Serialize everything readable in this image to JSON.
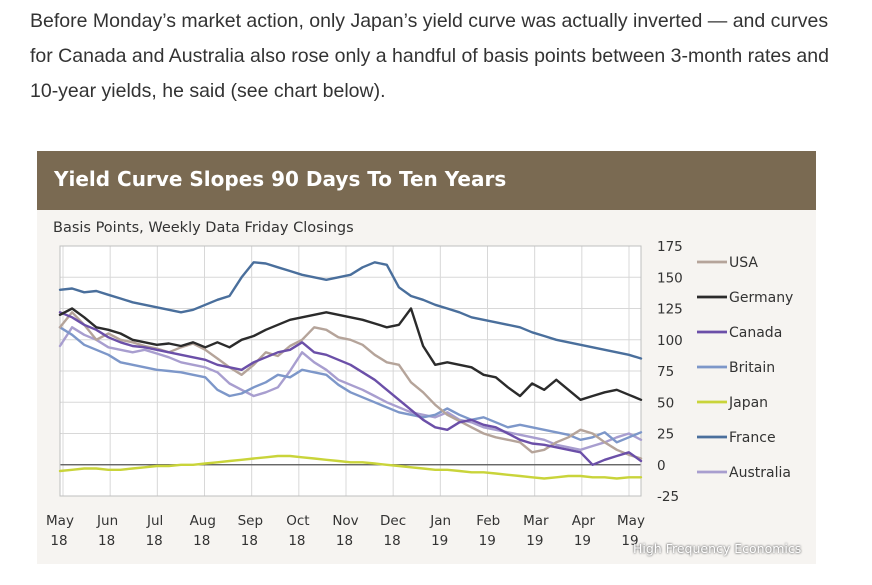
{
  "article": {
    "paragraph": "Before Monday’s market action, only Japan’s yield curve was actually inverted — and curves for Canada and Australia also rose only a handful of basis points between 3-month rates and 10-year yields, he said (see chart below)."
  },
  "chart_data": {
    "type": "line",
    "title": "Yield Curve Slopes 90 Days To Ten Years",
    "subtitle": "Basis Points, Weekly Data Friday Closings",
    "source": "High Frequency Economics",
    "ylim": [
      -25,
      175
    ],
    "yticks": [
      175,
      150,
      125,
      100,
      75,
      50,
      25,
      0,
      -25
    ],
    "x_tick_labels": [
      {
        "month": "May",
        "year": "18"
      },
      {
        "month": "Jun",
        "year": "18"
      },
      {
        "month": "Jul",
        "year": "18"
      },
      {
        "month": "Aug",
        "year": "18"
      },
      {
        "month": "Sep",
        "year": "18"
      },
      {
        "month": "Oct",
        "year": "18"
      },
      {
        "month": "Nov",
        "year": "18"
      },
      {
        "month": "Dec",
        "year": "18"
      },
      {
        "month": "Jan",
        "year": "19"
      },
      {
        "month": "Feb",
        "year": "19"
      },
      {
        "month": "Mar",
        "year": "19"
      },
      {
        "month": "Apr",
        "year": "19"
      },
      {
        "month": "May",
        "year": "19"
      }
    ],
    "grid": true,
    "legend_position": "right",
    "series": [
      {
        "name": "USA",
        "color": "#b5a49a",
        "values": [
          110,
          122,
          112,
          100,
          105,
          100,
          98,
          95,
          93,
          90,
          94,
          97,
          92,
          85,
          78,
          72,
          80,
          90,
          87,
          95,
          100,
          110,
          108,
          102,
          100,
          96,
          88,
          82,
          80,
          66,
          58,
          48,
          40,
          35,
          30,
          25,
          22,
          20,
          18,
          10,
          12,
          18,
          22,
          28,
          25,
          18,
          12,
          8,
          5
        ]
      },
      {
        "name": "Germany",
        "color": "#2b2b2b",
        "values": [
          120,
          125,
          118,
          110,
          108,
          105,
          100,
          98,
          96,
          97,
          95,
          98,
          94,
          98,
          94,
          100,
          103,
          108,
          112,
          116,
          118,
          120,
          122,
          120,
          118,
          116,
          113,
          110,
          112,
          125,
          95,
          80,
          82,
          80,
          78,
          72,
          70,
          62,
          55,
          65,
          60,
          68,
          60,
          52,
          55,
          58,
          60,
          56,
          52
        ]
      },
      {
        "name": "Canada",
        "color": "#6b4fa8",
        "values": [
          122,
          118,
          112,
          108,
          102,
          98,
          95,
          94,
          92,
          90,
          88,
          86,
          84,
          80,
          78,
          76,
          82,
          86,
          90,
          92,
          98,
          90,
          88,
          84,
          80,
          74,
          68,
          60,
          52,
          44,
          36,
          30,
          28,
          34,
          36,
          32,
          30,
          25,
          20,
          17,
          16,
          14,
          12,
          10,
          0,
          4,
          7,
          10,
          3
        ]
      },
      {
        "name": "Britain",
        "color": "#7d97c9",
        "values": [
          110,
          104,
          96,
          92,
          88,
          82,
          80,
          78,
          76,
          75,
          74,
          72,
          70,
          60,
          55,
          57,
          62,
          66,
          72,
          70,
          76,
          74,
          72,
          64,
          58,
          54,
          50,
          46,
          42,
          40,
          38,
          40,
          45,
          40,
          36,
          38,
          34,
          30,
          32,
          30,
          28,
          26,
          24,
          20,
          22,
          26,
          18,
          22,
          26
        ]
      },
      {
        "name": "Japan",
        "color": "#c9d43a",
        "values": [
          -5,
          -4,
          -3,
          -3,
          -4,
          -4,
          -3,
          -2,
          -1,
          -1,
          0,
          0,
          1,
          2,
          3,
          4,
          5,
          6,
          7,
          7,
          6,
          5,
          4,
          3,
          2,
          2,
          1,
          0,
          -1,
          -2,
          -3,
          -4,
          -4,
          -5,
          -6,
          -6,
          -7,
          -8,
          -9,
          -10,
          -11,
          -10,
          -9,
          -9,
          -10,
          -10,
          -11,
          -10,
          -10
        ]
      },
      {
        "name": "France",
        "color": "#4a6f9c",
        "values": [
          140,
          141,
          138,
          139,
          136,
          133,
          130,
          128,
          126,
          124,
          122,
          124,
          128,
          132,
          135,
          150,
          162,
          161,
          158,
          155,
          152,
          150,
          148,
          150,
          152,
          158,
          162,
          160,
          142,
          135,
          132,
          128,
          125,
          122,
          118,
          116,
          114,
          112,
          110,
          106,
          103,
          100,
          98,
          96,
          94,
          92,
          90,
          88,
          85
        ]
      },
      {
        "name": "Australia",
        "color": "#a89ecf",
        "values": [
          95,
          110,
          104,
          100,
          94,
          92,
          90,
          92,
          89,
          86,
          82,
          80,
          78,
          74,
          65,
          60,
          55,
          58,
          62,
          75,
          90,
          82,
          76,
          68,
          64,
          60,
          55,
          50,
          46,
          42,
          40,
          38,
          42,
          36,
          34,
          30,
          28,
          26,
          24,
          22,
          20,
          16,
          14,
          12,
          15,
          18,
          22,
          25,
          20
        ]
      }
    ]
  }
}
